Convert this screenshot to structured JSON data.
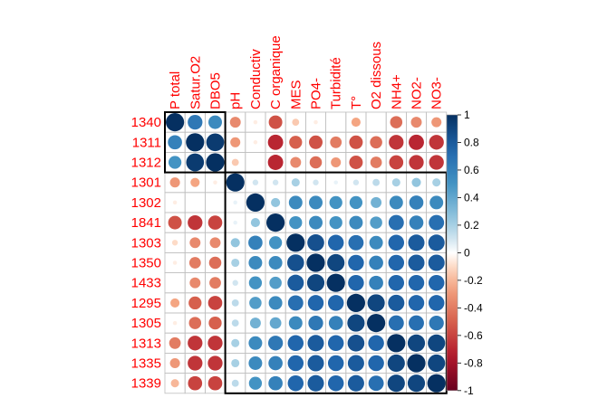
{
  "chart_data": {
    "type": "heatmap",
    "title": "",
    "columns": [
      "P total",
      "Satur.O2",
      "DBO5",
      "pH",
      "Conductiv",
      "C organique",
      "MES",
      "PO4-",
      "Turbidité",
      "T°",
      "O2 dissous",
      "NH4+",
      "NO2-",
      "NO3-"
    ],
    "rows": [
      "1340",
      "1311",
      "1312",
      "1301",
      "1302",
      "1841",
      "1303",
      "1350",
      "1433",
      "1295",
      "1305",
      "1313",
      "1335",
      "1339"
    ],
    "values": [
      [
        1.0,
        0.65,
        0.55,
        -0.35,
        -0.05,
        -0.55,
        -0.15,
        -0.05,
        0.0,
        -0.25,
        0.0,
        -0.45,
        -0.35,
        -0.3
      ],
      [
        0.6,
        1.0,
        0.95,
        -0.3,
        -0.05,
        -0.7,
        -0.5,
        -0.55,
        -0.4,
        -0.55,
        -0.45,
        -0.65,
        -0.7,
        -0.65
      ],
      [
        0.5,
        0.95,
        1.0,
        -0.15,
        0.0,
        -0.7,
        -0.35,
        -0.45,
        -0.3,
        -0.55,
        -0.4,
        -0.6,
        -0.65,
        -0.65
      ],
      [
        -0.3,
        -0.25,
        -0.05,
        1.0,
        0.1,
        0.1,
        0.2,
        0.1,
        0.05,
        0.1,
        0.15,
        0.2,
        0.25,
        0.2
      ],
      [
        -0.05,
        0.0,
        0.0,
        0.05,
        1.0,
        0.25,
        0.55,
        0.55,
        0.5,
        0.5,
        0.35,
        0.55,
        0.6,
        0.55
      ],
      [
        -0.55,
        -0.65,
        -0.6,
        0.05,
        0.25,
        1.0,
        0.5,
        0.55,
        0.5,
        0.55,
        0.45,
        0.7,
        0.6,
        0.7
      ],
      [
        -0.1,
        -0.35,
        -0.35,
        0.25,
        0.6,
        0.5,
        1.0,
        0.85,
        0.75,
        0.7,
        0.55,
        0.75,
        0.8,
        0.8
      ],
      [
        -0.05,
        -0.4,
        -0.45,
        0.2,
        0.55,
        0.55,
        0.85,
        1.0,
        0.9,
        0.75,
        0.6,
        0.75,
        0.8,
        0.8
      ],
      [
        0.0,
        -0.35,
        -0.4,
        0.1,
        0.5,
        0.45,
        0.8,
        0.9,
        1.0,
        0.75,
        0.6,
        0.75,
        0.75,
        0.75
      ],
      [
        -0.25,
        -0.5,
        -0.6,
        0.15,
        0.45,
        0.55,
        0.7,
        0.75,
        0.75,
        1.0,
        0.9,
        0.8,
        0.75,
        0.75
      ],
      [
        -0.05,
        -0.45,
        -0.5,
        0.15,
        0.35,
        0.4,
        0.55,
        0.65,
        0.6,
        0.9,
        1.0,
        0.7,
        0.7,
        0.65
      ],
      [
        -0.4,
        -0.65,
        -0.65,
        0.2,
        0.55,
        0.65,
        0.75,
        0.8,
        0.75,
        0.85,
        0.75,
        1.0,
        0.9,
        0.9
      ],
      [
        -0.3,
        -0.65,
        -0.65,
        0.2,
        0.55,
        0.6,
        0.75,
        0.8,
        0.75,
        0.8,
        0.75,
        0.9,
        1.0,
        0.9
      ],
      [
        -0.2,
        -0.6,
        -0.6,
        0.15,
        0.5,
        0.6,
        0.75,
        0.8,
        0.75,
        0.8,
        0.7,
        0.9,
        0.9,
        1.0
      ]
    ],
    "clusters": [
      {
        "start": 0,
        "end": 2
      },
      {
        "start": 3,
        "end": 13
      }
    ],
    "colorbar": {
      "range": [
        -1,
        1
      ],
      "ticks": [
        "1",
        "0.8",
        "0.6",
        "0.4",
        "0.2",
        "0",
        "-0.2",
        "-0.4",
        "-0.6",
        "-0.8",
        "-1"
      ]
    },
    "colors": {
      "negative": "#67001F",
      "neutral": "#FFFFFF",
      "positive": "#053061",
      "label": "#FF0000",
      "grid": "#BEBEBE",
      "cluster_border": "#000000"
    }
  }
}
